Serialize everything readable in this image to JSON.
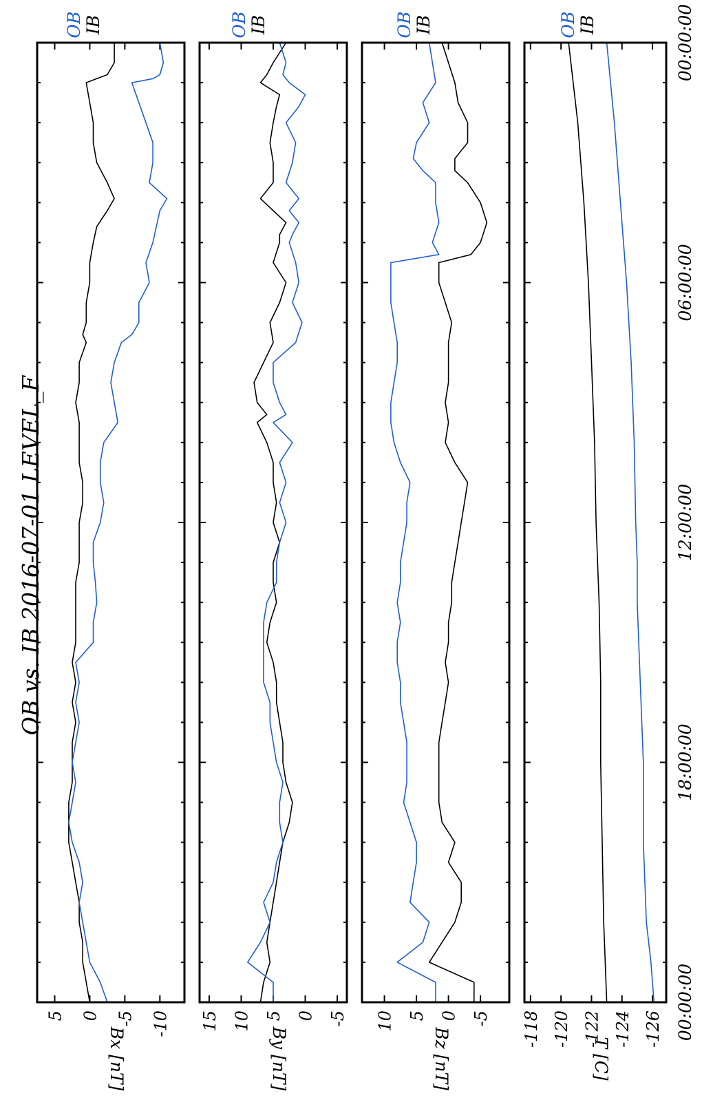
{
  "title": "OB vs. IB  2016-07-01 LEVEL_F",
  "legend": {
    "ob": "OB",
    "ib": "IB"
  },
  "colors": {
    "ob": "#1f5fd0",
    "ib": "#000000"
  },
  "time_axis": {
    "start": "00:00:00",
    "end": "24:00:00",
    "labels": [
      "00:00:00",
      "06:00:00",
      "12:00:00",
      "18:00:00",
      "00:00:00"
    ],
    "label_hours": [
      0,
      6,
      12,
      18,
      24
    ],
    "major_tick_hours": [
      0,
      6,
      12,
      18,
      24
    ],
    "minor_tick_hours": [
      1,
      2,
      3,
      4,
      5,
      7,
      8,
      9,
      10,
      11,
      13,
      14,
      15,
      16,
      17,
      19,
      20,
      21,
      22,
      23
    ]
  },
  "chart_data": [
    {
      "type": "line",
      "ylabel": "Bx [nT]",
      "ylim": [
        -13.5,
        7.5
      ],
      "yticks": [
        -10,
        -5,
        0,
        5
      ],
      "yticklabels": [
        "-10",
        "-5",
        "0",
        "5"
      ],
      "x_unit": "hours (UTC) since 2016-07-01 00:00:00",
      "series": [
        {
          "name": "OB",
          "color": "#1f5fd0",
          "x": [
            0,
            0.5,
            0.8,
            0.9,
            1.0,
            1.5,
            2.0,
            2.5,
            3.0,
            3.5,
            3.9,
            4.2,
            4.6,
            5.0,
            5.5,
            6.0,
            6.5,
            7.0,
            7.3,
            7.5,
            8.0,
            8.5,
            9.0,
            9.5,
            10.0,
            10.5,
            11.0,
            11.5,
            12.0,
            12.5,
            13.0,
            13.5,
            14.0,
            14.5,
            15.0,
            15.5,
            16.0,
            16.5,
            17.0,
            17.5,
            18.0,
            18.5,
            19.0,
            19.5,
            20.0,
            20.5,
            21.0,
            21.5,
            22.0,
            22.5,
            23.0,
            23.5,
            24.0
          ],
          "y": [
            -10,
            -10.5,
            -10,
            -9,
            -6,
            -7,
            -8,
            -9,
            -9,
            -8.5,
            -11,
            -10,
            -9.5,
            -9,
            -8,
            -8.5,
            -7,
            -7,
            -6,
            -4.5,
            -3.5,
            -3,
            -3.5,
            -4,
            -2,
            -1.5,
            -1.5,
            -2,
            -1.5,
            -0.5,
            -0.5,
            -0.8,
            -1,
            -0.5,
            -0.5,
            2,
            1.5,
            2,
            1.5,
            2,
            2.5,
            2,
            2.5,
            3,
            2.5,
            1.5,
            1,
            1.5,
            1,
            0.5,
            0,
            -1.5,
            -2.5
          ]
        },
        {
          "name": "IB",
          "color": "#000000",
          "x": [
            0,
            0.5,
            0.8,
            0.9,
            1.0,
            1.5,
            2.0,
            2.5,
            3.0,
            3.5,
            3.9,
            4.2,
            4.6,
            5.0,
            5.5,
            6.0,
            6.5,
            7.0,
            7.3,
            7.5,
            8.0,
            8.5,
            9.0,
            9.5,
            10.0,
            10.5,
            11.0,
            11.5,
            12.0,
            12.5,
            13.0,
            13.5,
            14.0,
            14.5,
            15.0,
            15.5,
            16.0,
            16.5,
            17.0,
            17.5,
            18.0,
            18.5,
            19.0,
            19.5,
            20.0,
            20.5,
            21.0,
            21.5,
            22.0,
            22.5,
            23.0,
            23.5,
            24.0
          ],
          "y": [
            -3.5,
            -3.5,
            -2.5,
            -1,
            0.5,
            0,
            -0.5,
            -0.5,
            -1,
            -2.5,
            -3.5,
            -2.5,
            -1,
            -0.5,
            0,
            0,
            0.5,
            0.5,
            1,
            0.5,
            1.5,
            1.5,
            2,
            1.5,
            1.5,
            1.5,
            1,
            1,
            1.5,
            1.5,
            1.5,
            2,
            2,
            2,
            2,
            2.5,
            2,
            2.5,
            2,
            2.5,
            2.5,
            2.5,
            3,
            3,
            3,
            2.5,
            2,
            1.5,
            1.5,
            1,
            1,
            0.5,
            0
          ]
        }
      ]
    },
    {
      "type": "line",
      "ylabel": "By [nT]",
      "ylim": [
        -6.5,
        16.5
      ],
      "yticks": [
        -5,
        0,
        5,
        10,
        15
      ],
      "yticklabels": [
        "-5",
        "0",
        "5",
        "10",
        "15"
      ],
      "x_unit": "hours (UTC) since 2016-07-01 00:00:00",
      "series": [
        {
          "name": "OB",
          "color": "#1f5fd0",
          "x": [
            0,
            0.5,
            0.8,
            1.0,
            1.3,
            1.6,
            2.0,
            2.5,
            3.0,
            3.5,
            3.9,
            4.2,
            4.5,
            4.8,
            5.0,
            5.5,
            6.0,
            6.5,
            7.0,
            7.5,
            8.0,
            8.5,
            9.0,
            9.3,
            9.5,
            10.0,
            10.5,
            11.0,
            11.5,
            12.0,
            12.5,
            13.0,
            13.5,
            14.0,
            14.5,
            15.0,
            15.5,
            16.0,
            16.5,
            17.0,
            17.5,
            18.0,
            18.5,
            19.0,
            19.5,
            20.0,
            20.5,
            21.0,
            21.5,
            22.0,
            22.5,
            23.0,
            23.5,
            24.0
          ],
          "y": [
            4,
            3,
            3.5,
            2.5,
            0,
            1,
            3,
            1.5,
            2,
            3,
            1,
            2.5,
            1,
            2,
            2.5,
            1.5,
            1,
            2,
            0.5,
            1.5,
            5,
            5,
            4,
            3,
            5,
            2,
            4,
            3,
            4,
            3,
            4,
            4.5,
            4.5,
            6,
            6.5,
            6.5,
            6.5,
            6.5,
            5.5,
            5.5,
            5,
            4.5,
            3.5,
            4,
            4,
            3.5,
            4.5,
            5,
            6.5,
            5.5,
            7,
            9,
            5,
            5
          ]
        },
        {
          "name": "IB",
          "color": "#000000",
          "x": [
            0,
            0.5,
            0.8,
            1.0,
            1.3,
            1.6,
            2.0,
            2.5,
            3.0,
            3.5,
            3.9,
            4.2,
            4.5,
            4.8,
            5.0,
            5.5,
            6.0,
            6.5,
            7.0,
            7.5,
            8.0,
            8.5,
            9.0,
            9.3,
            9.5,
            10.0,
            10.5,
            11.0,
            11.5,
            12.0,
            12.5,
            13.0,
            13.5,
            14.0,
            14.5,
            15.0,
            15.5,
            16.0,
            16.5,
            17.0,
            17.5,
            18.0,
            18.5,
            19.0,
            19.5,
            20.0,
            20.5,
            21.0,
            21.5,
            22.0,
            22.5,
            23.0,
            23.5,
            24.0
          ],
          "y": [
            3,
            5,
            6,
            7,
            4,
            4.5,
            5,
            5.5,
            5,
            5,
            7,
            5,
            3,
            4,
            4,
            5,
            3,
            4,
            5.5,
            5,
            6.5,
            8,
            7.5,
            6,
            7.5,
            6,
            5,
            5,
            4.5,
            5,
            4,
            5,
            5,
            4.5,
            5.5,
            6,
            5,
            4.5,
            4.5,
            4,
            3.5,
            3.5,
            3,
            2,
            2.5,
            3.5,
            4,
            4.5,
            5,
            5.5,
            6,
            5.5,
            6.5,
            7
          ]
        }
      ]
    },
    {
      "type": "line",
      "ylabel": "Bz [nT]",
      "ylim": [
        -9.5,
        13.5
      ],
      "yticks": [
        -5,
        0,
        5,
        10
      ],
      "yticklabels": [
        "-5",
        "0",
        "5",
        "10"
      ],
      "x_unit": "hours (UTC) since 2016-07-01 00:00:00",
      "series": [
        {
          "name": "OB",
          "color": "#1f5fd0",
          "x": [
            0,
            0.5,
            1.0,
            1.5,
            2.0,
            2.5,
            2.9,
            3.2,
            3.5,
            4.0,
            4.5,
            5.0,
            5.3,
            5.5,
            6.0,
            6.5,
            7.0,
            7.5,
            8.0,
            8.5,
            9.0,
            9.5,
            10.0,
            10.5,
            11.0,
            11.5,
            12.0,
            12.5,
            13.0,
            13.5,
            14.0,
            14.5,
            15.0,
            15.5,
            16.0,
            16.5,
            17.0,
            17.5,
            18.0,
            18.5,
            19.0,
            19.5,
            20.0,
            20.5,
            21.0,
            21.5,
            22.0,
            22.5,
            23.0,
            23.5,
            24.0
          ],
          "y": [
            3,
            2.5,
            2,
            4,
            3,
            5,
            5.5,
            4,
            2,
            2,
            1.5,
            2.5,
            1.5,
            9,
            9,
            9,
            8.5,
            8,
            8,
            8.5,
            9,
            9,
            8.5,
            7.5,
            6,
            6.5,
            6.5,
            7,
            7.5,
            7.5,
            8,
            7.5,
            8,
            8,
            7.5,
            7.5,
            7,
            6.5,
            6.5,
            6.5,
            7,
            6,
            5,
            5,
            5.5,
            6,
            3,
            4,
            8,
            2,
            2
          ]
        },
        {
          "name": "IB",
          "color": "#000000",
          "x": [
            0,
            0.5,
            1.0,
            1.5,
            2.0,
            2.5,
            2.9,
            3.2,
            3.5,
            4.0,
            4.5,
            5.0,
            5.3,
            5.5,
            6.0,
            6.5,
            7.0,
            7.5,
            8.0,
            8.5,
            9.0,
            9.5,
            10.0,
            10.5,
            11.0,
            11.5,
            12.0,
            12.5,
            13.0,
            13.5,
            14.0,
            14.5,
            15.0,
            15.5,
            16.0,
            16.5,
            17.0,
            17.5,
            18.0,
            18.5,
            19.0,
            19.5,
            20.0,
            20.5,
            21.0,
            21.5,
            22.0,
            22.5,
            23.0,
            23.5,
            24.0
          ],
          "y": [
            1,
            0,
            -1,
            -1.5,
            -3,
            -3,
            -1,
            -1,
            -3,
            -5,
            -6,
            -5,
            -3.5,
            1.5,
            1.5,
            0.5,
            -0.5,
            0,
            0,
            0,
            0.5,
            0,
            0.5,
            -1,
            -3,
            -2.5,
            -2,
            -1.5,
            -1,
            -0.5,
            -0.5,
            0,
            0,
            0.5,
            0,
            0.5,
            1,
            1.5,
            1.5,
            1.5,
            1.5,
            1,
            -1,
            0,
            -2,
            -2,
            -1,
            1,
            3,
            -4,
            -4
          ]
        }
      ]
    },
    {
      "type": "line",
      "ylabel": "T [C]",
      "ylim": [
        -126.9,
        -117.6
      ],
      "yticks": [
        -126,
        -124,
        -122,
        -120,
        -118
      ],
      "yticklabels": [
        "-126",
        "-124",
        "-122",
        "-120",
        "-118"
      ],
      "x_unit": "hours (UTC) since 2016-07-01 00:00:00",
      "series": [
        {
          "name": "OB",
          "color": "#1f5fd0",
          "x": [
            0,
            2,
            4,
            6,
            8,
            10,
            12,
            13,
            14,
            16,
            18,
            20,
            21,
            22,
            23,
            24
          ],
          "y": [
            -123,
            -123.5,
            -123.9,
            -124.3,
            -124.6,
            -124.8,
            -124.9,
            -125,
            -125,
            -125.2,
            -125.4,
            -125.4,
            -125.5,
            -125.6,
            -125.9,
            -126.1
          ]
        },
        {
          "name": "IB",
          "color": "#000000",
          "x": [
            0,
            2,
            4,
            6,
            8,
            10,
            12,
            14,
            16,
            18,
            20,
            22,
            24
          ],
          "y": [
            -120.5,
            -121.1,
            -121.5,
            -121.8,
            -122,
            -122.2,
            -122.3,
            -122.5,
            -122.6,
            -122.6,
            -122.7,
            -122.8,
            -123
          ]
        }
      ]
    }
  ]
}
